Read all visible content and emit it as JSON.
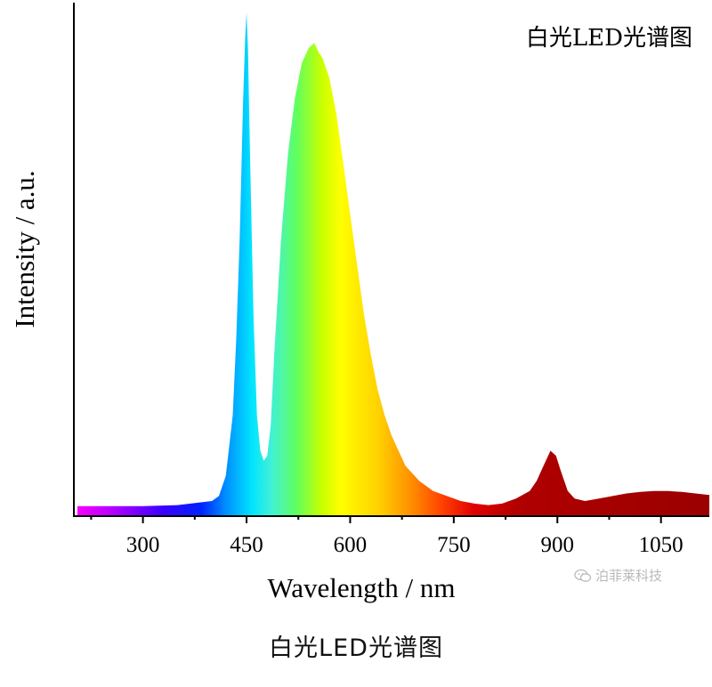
{
  "chart_data": {
    "type": "area",
    "title": "白光LED光谱图",
    "xlabel": "Wavelength / nm",
    "ylabel": "Intensity / a.u.",
    "xlim": [
      200,
      1120
    ],
    "ylim": [
      0,
      1.02
    ],
    "x_ticks": [
      300,
      450,
      600,
      750,
      900,
      1050
    ],
    "x_tick_labels": [
      "300",
      "450",
      "600",
      "750",
      "900",
      "1050"
    ],
    "y_ticks": [],
    "grid": false,
    "legend": "none",
    "fill": "wavelength-color gradient (magenta → blue → cyan → green → yellow → orange → red → dark red)",
    "series": [
      {
        "x": [
          205,
          250,
          300,
          350,
          400,
          410,
          420,
          430,
          435,
          440,
          445,
          448,
          450,
          452,
          455,
          460,
          465,
          470,
          475,
          480,
          485,
          490,
          500,
          510,
          520,
          530,
          540,
          548,
          555,
          560,
          570,
          580,
          590,
          600,
          610,
          620,
          630,
          640,
          650,
          660,
          680,
          700,
          720,
          740,
          760,
          780,
          800,
          820,
          840,
          860,
          870,
          880,
          890,
          898,
          905,
          915,
          925,
          940,
          960,
          980,
          1000,
          1020,
          1040,
          1060,
          1080,
          1100,
          1120
        ],
        "y": [
          0.02,
          0.02,
          0.02,
          0.022,
          0.03,
          0.04,
          0.08,
          0.2,
          0.35,
          0.55,
          0.82,
          0.95,
          1.0,
          0.93,
          0.72,
          0.4,
          0.2,
          0.13,
          0.11,
          0.12,
          0.18,
          0.32,
          0.55,
          0.72,
          0.83,
          0.9,
          0.93,
          0.94,
          0.92,
          0.91,
          0.87,
          0.8,
          0.7,
          0.6,
          0.5,
          0.4,
          0.32,
          0.25,
          0.2,
          0.16,
          0.1,
          0.07,
          0.05,
          0.04,
          0.03,
          0.025,
          0.022,
          0.025,
          0.035,
          0.05,
          0.07,
          0.1,
          0.13,
          0.12,
          0.09,
          0.05,
          0.035,
          0.03,
          0.035,
          0.04,
          0.045,
          0.048,
          0.05,
          0.05,
          0.048,
          0.045,
          0.042
        ]
      }
    ]
  },
  "watermark": {
    "text": "泊菲莱科技",
    "icon": "wechat-icon"
  },
  "caption": "白光LED光谱图",
  "colors": {
    "axis": "#000000",
    "background": "#ffffff",
    "watermark": "#b9b9b9"
  }
}
